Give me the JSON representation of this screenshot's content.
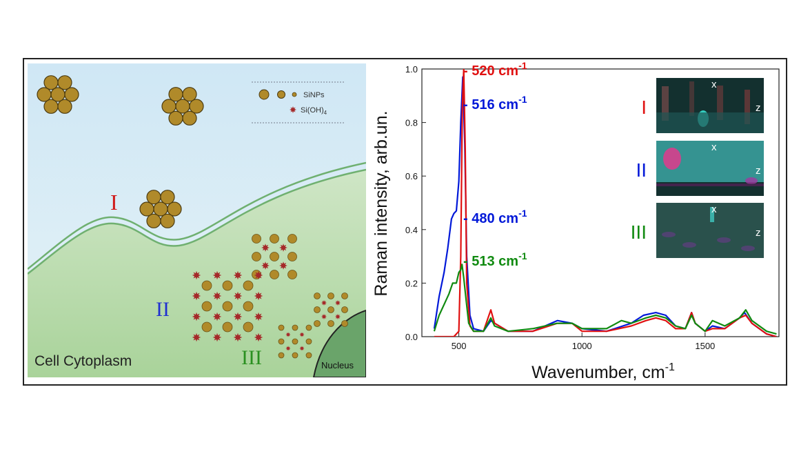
{
  "left_panel": {
    "legend": {
      "sinps": "SiNPs",
      "sioh4_base": "Si(OH)",
      "sioh4_sub": "4"
    },
    "stages": {
      "I": "I",
      "II": "II",
      "III": "III"
    },
    "cytoplasm_label": "Cell Cytoplasm",
    "nucleus_label": "Nucleus",
    "colors": {
      "nanoparticle": "#b08a2a",
      "silicic_acid": "#a52a2a",
      "membrane": "#6fb070",
      "cytoplasm": "#c6e0bd",
      "extracellular": "#d8ecf6",
      "nucleus": "#6aa46a"
    }
  },
  "chart_data": {
    "type": "line",
    "xlabel_main": "Wavenumber, cm",
    "xlabel_sup": "-1",
    "ylabel": "Raman intensity, arb.un.",
    "xlim": [
      350,
      1800
    ],
    "ylim": [
      0,
      1.0
    ],
    "x_ticks": [
      500,
      1000,
      1500
    ],
    "y_ticks": [
      0.0,
      0.2,
      0.4,
      0.6,
      0.8,
      1.0
    ],
    "y_tick_labels": [
      "0.0",
      "0.2",
      "0.4",
      "0.6",
      "0.8",
      "1.0"
    ],
    "series": [
      {
        "color": "#0018d8",
        "points": [
          [
            400,
            0.03
          ],
          [
            420,
            0.15
          ],
          [
            440,
            0.24
          ],
          [
            455,
            0.33
          ],
          [
            470,
            0.44
          ],
          [
            480,
            0.46
          ],
          [
            490,
            0.47
          ],
          [
            500,
            0.58
          ],
          [
            508,
            0.8
          ],
          [
            516,
            0.97
          ],
          [
            524,
            0.72
          ],
          [
            532,
            0.3
          ],
          [
            545,
            0.08
          ],
          [
            560,
            0.03
          ],
          [
            600,
            0.02
          ],
          [
            630,
            0.06
          ],
          [
            645,
            0.05
          ],
          [
            700,
            0.02
          ],
          [
            800,
            0.02
          ],
          [
            900,
            0.06
          ],
          [
            960,
            0.05
          ],
          [
            1000,
            0.03
          ],
          [
            1100,
            0.02
          ],
          [
            1200,
            0.05
          ],
          [
            1250,
            0.08
          ],
          [
            1300,
            0.09
          ],
          [
            1340,
            0.08
          ],
          [
            1380,
            0.04
          ],
          [
            1420,
            0.03
          ],
          [
            1445,
            0.09
          ],
          [
            1460,
            0.05
          ],
          [
            1500,
            0.02
          ],
          [
            1530,
            0.04
          ],
          [
            1580,
            0.03
          ],
          [
            1640,
            0.07
          ],
          [
            1660,
            0.09
          ],
          [
            1690,
            0.05
          ],
          [
            1750,
            0.01
          ],
          [
            1790,
            0.0
          ]
        ]
      },
      {
        "color": "#e01010",
        "points": [
          [
            400,
            0.0
          ],
          [
            480,
            0.0
          ],
          [
            500,
            0.02
          ],
          [
            508,
            0.3
          ],
          [
            514,
            0.85
          ],
          [
            520,
            1.0
          ],
          [
            526,
            0.7
          ],
          [
            532,
            0.2
          ],
          [
            545,
            0.04
          ],
          [
            560,
            0.02
          ],
          [
            600,
            0.02
          ],
          [
            630,
            0.1
          ],
          [
            645,
            0.05
          ],
          [
            700,
            0.02
          ],
          [
            800,
            0.02
          ],
          [
            900,
            0.05
          ],
          [
            960,
            0.05
          ],
          [
            1000,
            0.02
          ],
          [
            1100,
            0.02
          ],
          [
            1200,
            0.04
          ],
          [
            1260,
            0.06
          ],
          [
            1300,
            0.07
          ],
          [
            1340,
            0.06
          ],
          [
            1380,
            0.03
          ],
          [
            1420,
            0.03
          ],
          [
            1445,
            0.09
          ],
          [
            1460,
            0.05
          ],
          [
            1500,
            0.02
          ],
          [
            1530,
            0.03
          ],
          [
            1580,
            0.03
          ],
          [
            1640,
            0.07
          ],
          [
            1665,
            0.08
          ],
          [
            1690,
            0.05
          ],
          [
            1750,
            0.01
          ],
          [
            1790,
            0.0
          ]
        ]
      },
      {
        "color": "#108a10",
        "points": [
          [
            400,
            0.02
          ],
          [
            420,
            0.08
          ],
          [
            440,
            0.12
          ],
          [
            460,
            0.16
          ],
          [
            475,
            0.2
          ],
          [
            490,
            0.2
          ],
          [
            500,
            0.24
          ],
          [
            508,
            0.25
          ],
          [
            513,
            0.27
          ],
          [
            520,
            0.22
          ],
          [
            528,
            0.15
          ],
          [
            540,
            0.05
          ],
          [
            560,
            0.02
          ],
          [
            600,
            0.02
          ],
          [
            630,
            0.07
          ],
          [
            645,
            0.04
          ],
          [
            700,
            0.02
          ],
          [
            800,
            0.03
          ],
          [
            900,
            0.05
          ],
          [
            960,
            0.05
          ],
          [
            1000,
            0.03
          ],
          [
            1100,
            0.03
          ],
          [
            1160,
            0.06
          ],
          [
            1200,
            0.05
          ],
          [
            1260,
            0.07
          ],
          [
            1300,
            0.08
          ],
          [
            1340,
            0.07
          ],
          [
            1380,
            0.04
          ],
          [
            1420,
            0.03
          ],
          [
            1445,
            0.08
          ],
          [
            1460,
            0.05
          ],
          [
            1500,
            0.02
          ],
          [
            1530,
            0.06
          ],
          [
            1580,
            0.04
          ],
          [
            1640,
            0.07
          ],
          [
            1665,
            0.1
          ],
          [
            1690,
            0.06
          ],
          [
            1750,
            0.02
          ],
          [
            1790,
            0.01
          ]
        ]
      }
    ],
    "annotations": [
      {
        "text": "- 520 cm",
        "sup": "-1",
        "color": "#e01010"
      },
      {
        "text": "- 516 cm",
        "sup": "-1",
        "color": "#0018d8"
      },
      {
        "text": "- 480 cm",
        "sup": "-1",
        "color": "#0018d8"
      },
      {
        "text": "- 513 cm",
        "sup": "-1",
        "color": "#108a10"
      }
    ]
  },
  "insets": [
    {
      "roman": "I",
      "roman_color": "#e01010",
      "axis_x": "x",
      "axis_z": "z"
    },
    {
      "roman": "II",
      "roman_color": "#0018d8",
      "axis_x": "x",
      "axis_z": "z"
    },
    {
      "roman": "III",
      "roman_color": "#108a10",
      "axis_x": "x",
      "axis_z": "z"
    }
  ]
}
